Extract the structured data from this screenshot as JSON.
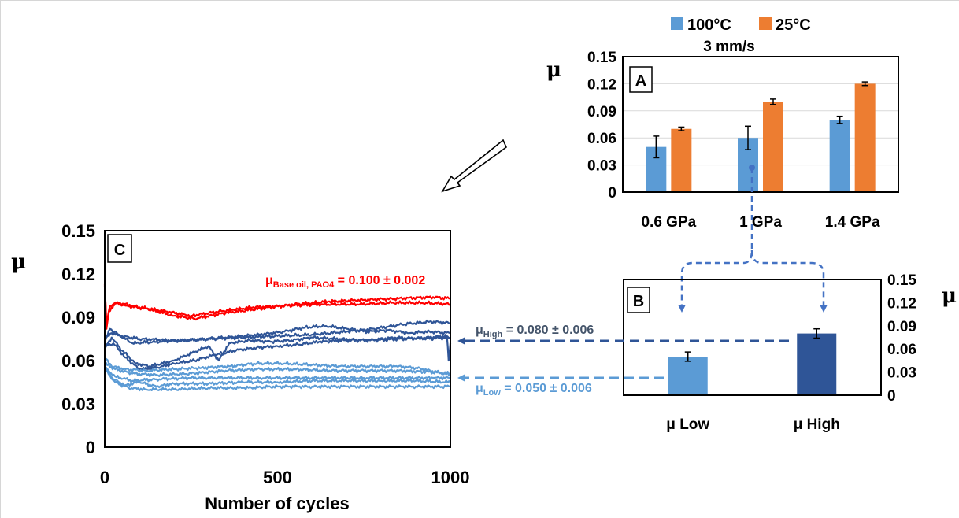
{
  "colors": {
    "orange": "#ED7D31",
    "light_blue": "#5B9BD5",
    "dark_blue": "#2F5597",
    "mid_blue": "#44546A",
    "red": "#FF0000",
    "arrow_blue": "#4472C4"
  },
  "chart_data": [
    {
      "id": "A",
      "type": "bar",
      "panel_label": "A",
      "ylabel": "μ",
      "subtitle": "3 mm/s",
      "categories": [
        "0.6 GPa",
        "1 GPa",
        "1.4 GPa"
      ],
      "series": [
        {
          "name": "100°C",
          "color": "#5B9BD5",
          "values": [
            0.05,
            0.06,
            0.08
          ],
          "errors": [
            0.012,
            0.013,
            0.004
          ]
        },
        {
          "name": "25°C",
          "color": "#ED7D31",
          "values": [
            0.07,
            0.1,
            0.12
          ],
          "errors": [
            0.002,
            0.003,
            0.002
          ]
        }
      ],
      "ylim": [
        0,
        0.15
      ],
      "yticks": [
        "0",
        "0.03",
        "0.06",
        "0.09",
        "0.12",
        "0.15"
      ],
      "grid": true,
      "legend_position": "top"
    },
    {
      "id": "B",
      "type": "bar",
      "panel_label": "B",
      "ylabel": "μ",
      "categories": [
        "μ Low",
        "μ High"
      ],
      "values": [
        0.05,
        0.08
      ],
      "errors": [
        0.006,
        0.006
      ],
      "colors": [
        "#5B9BD5",
        "#2F5597"
      ],
      "ylim": [
        0,
        0.15
      ],
      "yticks": [
        "0",
        "0.03",
        "0.06",
        "0.09",
        "0.12",
        "0.15"
      ],
      "y_axis_side": "right",
      "grid": false
    },
    {
      "id": "C",
      "type": "line",
      "panel_label": "C",
      "xlabel": "Number of cycles",
      "ylabel": "μ",
      "xlim": [
        0,
        1000
      ],
      "ylim": [
        0,
        0.15
      ],
      "xticks": [
        "0",
        "500",
        "1000"
      ],
      "yticks": [
        "0",
        "0.03",
        "0.06",
        "0.09",
        "0.12",
        "0.15"
      ],
      "series": [
        {
          "group": "base oil",
          "color": "#FF0000",
          "points": [
            [
              0,
              0.113
            ],
            [
              5,
              0.082
            ],
            [
              12,
              0.094
            ],
            [
              30,
              0.1
            ],
            [
              60,
              0.098
            ],
            [
              120,
              0.096
            ],
            [
              200,
              0.091
            ],
            [
              260,
              0.089
            ],
            [
              350,
              0.093
            ],
            [
              450,
              0.096
            ],
            [
              550,
              0.099
            ],
            [
              650,
              0.101
            ],
            [
              750,
              0.102
            ],
            [
              850,
              0.103
            ],
            [
              950,
              0.104
            ],
            [
              1000,
              0.103
            ]
          ]
        },
        {
          "group": "base oil",
          "color": "#FF0000",
          "points": [
            [
              0,
              0.112
            ],
            [
              5,
              0.085
            ],
            [
              15,
              0.098
            ],
            [
              40,
              0.1
            ],
            [
              100,
              0.097
            ],
            [
              180,
              0.094
            ],
            [
              250,
              0.091
            ],
            [
              330,
              0.094
            ],
            [
              430,
              0.097
            ],
            [
              530,
              0.098
            ],
            [
              630,
              0.099
            ],
            [
              730,
              0.099
            ],
            [
              830,
              0.1
            ],
            [
              930,
              0.1
            ],
            [
              1000,
              0.099
            ]
          ]
        },
        {
          "group": "high",
          "color": "#2F5597",
          "points": [
            [
              0,
              0.075
            ],
            [
              20,
              0.079
            ],
            [
              50,
              0.077
            ],
            [
              100,
              0.075
            ],
            [
              200,
              0.074
            ],
            [
              300,
              0.075
            ],
            [
              400,
              0.076
            ],
            [
              500,
              0.077
            ],
            [
              600,
              0.078
            ],
            [
              700,
              0.08
            ],
            [
              780,
              0.082
            ],
            [
              860,
              0.085
            ],
            [
              940,
              0.087
            ],
            [
              1000,
              0.086
            ]
          ]
        },
        {
          "group": "high",
          "color": "#2F5597",
          "points": [
            [
              0,
              0.072
            ],
            [
              15,
              0.082
            ],
            [
              40,
              0.078
            ],
            [
              80,
              0.072
            ],
            [
              150,
              0.073
            ],
            [
              250,
              0.074
            ],
            [
              350,
              0.076
            ],
            [
              450,
              0.078
            ],
            [
              520,
              0.08
            ],
            [
              580,
              0.083
            ],
            [
              640,
              0.084
            ],
            [
              700,
              0.082
            ],
            [
              760,
              0.08
            ],
            [
              820,
              0.081
            ],
            [
              880,
              0.079
            ],
            [
              940,
              0.08
            ],
            [
              1000,
              0.079
            ]
          ]
        },
        {
          "group": "high",
          "color": "#2F5597",
          "points": [
            [
              0,
              0.068
            ],
            [
              20,
              0.076
            ],
            [
              50,
              0.067
            ],
            [
              90,
              0.058
            ],
            [
              130,
              0.056
            ],
            [
              200,
              0.06
            ],
            [
              260,
              0.066
            ],
            [
              300,
              0.07
            ],
            [
              330,
              0.06
            ],
            [
              360,
              0.072
            ],
            [
              420,
              0.074
            ],
            [
              480,
              0.073
            ],
            [
              540,
              0.074
            ],
            [
              600,
              0.076
            ],
            [
              680,
              0.075
            ],
            [
              760,
              0.074
            ],
            [
              840,
              0.076
            ],
            [
              920,
              0.075
            ],
            [
              1000,
              0.076
            ]
          ]
        },
        {
          "group": "high",
          "color": "#2F5597",
          "points": [
            [
              0,
              0.07
            ],
            [
              25,
              0.072
            ],
            [
              60,
              0.062
            ],
            [
              100,
              0.054
            ],
            [
              150,
              0.055
            ],
            [
              200,
              0.058
            ],
            [
              260,
              0.06
            ],
            [
              320,
              0.064
            ],
            [
              380,
              0.067
            ],
            [
              440,
              0.069
            ],
            [
              500,
              0.07
            ],
            [
              560,
              0.071
            ],
            [
              620,
              0.073
            ],
            [
              700,
              0.074
            ],
            [
              780,
              0.074
            ],
            [
              860,
              0.075
            ],
            [
              940,
              0.076
            ],
            [
              990,
              0.077
            ],
            [
              995,
              0.06
            ],
            [
              1000,
              0.072
            ]
          ]
        },
        {
          "group": "low",
          "color": "#5B9BD5",
          "points": [
            [
              0,
              0.062
            ],
            [
              20,
              0.056
            ],
            [
              60,
              0.054
            ],
            [
              120,
              0.053
            ],
            [
              200,
              0.054
            ],
            [
              280,
              0.055
            ],
            [
              360,
              0.056
            ],
            [
              440,
              0.058
            ],
            [
              520,
              0.058
            ],
            [
              600,
              0.057
            ],
            [
              680,
              0.056
            ],
            [
              760,
              0.056
            ],
            [
              840,
              0.056
            ],
            [
              900,
              0.055
            ],
            [
              960,
              0.052
            ],
            [
              1000,
              0.05
            ]
          ]
        },
        {
          "group": "low",
          "color": "#5B9BD5",
          "points": [
            [
              0,
              0.058
            ],
            [
              30,
              0.054
            ],
            [
              80,
              0.051
            ],
            [
              150,
              0.05
            ],
            [
              250,
              0.051
            ],
            [
              350,
              0.053
            ],
            [
              450,
              0.054
            ],
            [
              550,
              0.054
            ],
            [
              650,
              0.053
            ],
            [
              750,
              0.053
            ],
            [
              850,
              0.053
            ],
            [
              950,
              0.052
            ],
            [
              1000,
              0.051
            ]
          ]
        },
        {
          "group": "low",
          "color": "#5B9BD5",
          "points": [
            [
              0,
              0.055
            ],
            [
              30,
              0.049
            ],
            [
              80,
              0.046
            ],
            [
              150,
              0.047
            ],
            [
              250,
              0.048
            ],
            [
              350,
              0.048
            ],
            [
              450,
              0.048
            ],
            [
              550,
              0.048
            ],
            [
              650,
              0.048
            ],
            [
              750,
              0.048
            ],
            [
              850,
              0.048
            ],
            [
              950,
              0.048
            ],
            [
              1000,
              0.048
            ]
          ]
        },
        {
          "group": "low",
          "color": "#5B9BD5",
          "points": [
            [
              0,
              0.056
            ],
            [
              25,
              0.047
            ],
            [
              60,
              0.043
            ],
            [
              100,
              0.045
            ],
            [
              150,
              0.042
            ],
            [
              200,
              0.044
            ],
            [
              300,
              0.044
            ],
            [
              400,
              0.045
            ],
            [
              500,
              0.045
            ],
            [
              600,
              0.046
            ],
            [
              700,
              0.046
            ],
            [
              800,
              0.046
            ],
            [
              900,
              0.046
            ],
            [
              1000,
              0.045
            ]
          ]
        },
        {
          "group": "low",
          "color": "#5B9BD5",
          "points": [
            [
              0,
              0.054
            ],
            [
              30,
              0.045
            ],
            [
              70,
              0.041
            ],
            [
              120,
              0.04
            ],
            [
              200,
              0.04
            ],
            [
              300,
              0.041
            ],
            [
              400,
              0.041
            ],
            [
              500,
              0.042
            ],
            [
              600,
              0.042
            ],
            [
              700,
              0.042
            ],
            [
              800,
              0.042
            ],
            [
              900,
              0.042
            ],
            [
              1000,
              0.042
            ]
          ]
        }
      ],
      "annotations": {
        "base_oil": {
          "symbol": "μ",
          "subscript": "Base oil, PAO4",
          "value": " = 0.100 ± 0.002"
        },
        "high": {
          "symbol": "μ",
          "subscript": "High",
          "value": " = 0.080 ± 0.006"
        },
        "low": {
          "symbol": "μ",
          "subscript": "Low",
          "value": " = 0.050 ± 0.006"
        }
      }
    }
  ]
}
